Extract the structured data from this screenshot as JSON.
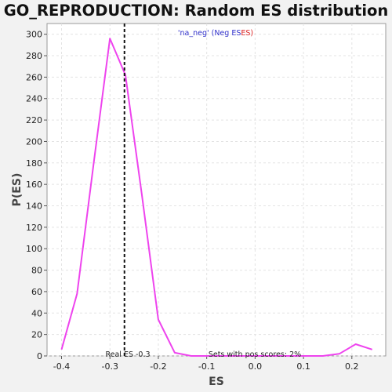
{
  "chart_data": {
    "type": "line",
    "title": "GO_REPRODUCTION: Random ES distribution",
    "xlabel": "ES",
    "ylabel": "P(ES)",
    "xlim": [
      -0.43,
      0.27
    ],
    "ylim": [
      0,
      310
    ],
    "xticks": [
      -0.4,
      -0.3,
      -0.2,
      -0.1,
      0.0,
      0.1,
      0.2
    ],
    "xtick_labels": [
      "-0.4",
      "-0.3",
      "-0.2",
      "-0.1",
      "0.0",
      "0.1",
      "0.2"
    ],
    "yticks": [
      0,
      20,
      40,
      60,
      80,
      100,
      120,
      140,
      160,
      180,
      200,
      220,
      240,
      260,
      280,
      300
    ],
    "grid": true,
    "series": [
      {
        "color": "#ee44ee",
        "x": [
          -0.4,
          -0.368,
          -0.334,
          -0.3,
          -0.268,
          -0.234,
          -0.2,
          -0.166,
          -0.132,
          -0.098,
          -0.064,
          -0.03,
          0.004,
          0.038,
          0.072,
          0.106,
          0.14,
          0.174,
          0.208,
          0.242
        ],
        "y": [
          6,
          58,
          178,
          296,
          262,
          150,
          34,
          3,
          0,
          0,
          0,
          0,
          0,
          0,
          0,
          0,
          0,
          2,
          11,
          6
        ]
      }
    ],
    "real_es": {
      "value": -0.27,
      "label": "Real ES -0.3",
      "color": "#111111"
    },
    "annotations": [
      {
        "text": "Sets with pos scores: 2%"
      }
    ],
    "legend": {
      "placement": "top-center",
      "part1": "'na_neg' (Neg ES",
      "part1_color": "#3333cc",
      "part2": "ES)",
      "part2_color": "#dd2222"
    }
  }
}
